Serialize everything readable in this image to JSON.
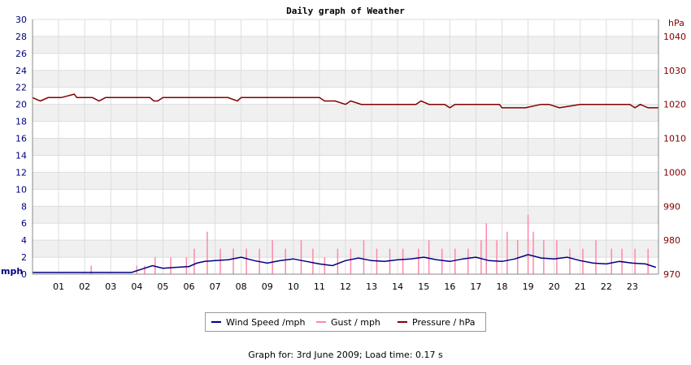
{
  "chart_data": {
    "type": "line",
    "title": "Daily graph of Weather",
    "y_left_label": "mph",
    "y_right_label": "hPa",
    "y_left_range": [
      0,
      30
    ],
    "y_left_ticks": [
      0,
      2,
      4,
      6,
      8,
      10,
      12,
      14,
      16,
      18,
      20,
      22,
      24,
      26,
      28,
      30
    ],
    "y_right_range": [
      970,
      1045
    ],
    "y_right_ticks": [
      970,
      980,
      990,
      1000,
      1010,
      1020,
      1030,
      1040
    ],
    "x_range": [
      0,
      24
    ],
    "x_ticks": [
      "01",
      "02",
      "03",
      "04",
      "05",
      "06",
      "07",
      "08",
      "09",
      "10",
      "11",
      "12",
      "13",
      "14",
      "15",
      "16",
      "17",
      "18",
      "19",
      "20",
      "21",
      "22",
      "23"
    ],
    "grid": true,
    "legend_position": "bottom-center",
    "series": [
      {
        "name": "Wind Speed /mph",
        "axis": "left",
        "color": "#000080",
        "x": [
          0,
          1,
          2,
          3,
          3.8,
          4.2,
          4.6,
          5,
          5.5,
          6,
          6.3,
          6.6,
          7,
          7.5,
          8,
          8.5,
          9,
          9.5,
          10,
          10.5,
          11,
          11.5,
          12,
          12.5,
          13,
          13.5,
          14,
          14.5,
          15,
          15.5,
          16,
          16.5,
          17,
          17.5,
          18,
          18.5,
          19,
          19.5,
          20,
          20.5,
          21,
          21.5,
          22,
          22.5,
          23,
          23.5,
          23.9
        ],
        "values": [
          0.2,
          0.2,
          0.2,
          0.2,
          0.2,
          0.6,
          1.0,
          0.7,
          0.8,
          0.9,
          1.3,
          1.5,
          1.6,
          1.7,
          2.0,
          1.6,
          1.3,
          1.6,
          1.8,
          1.5,
          1.2,
          1.0,
          1.6,
          1.9,
          1.6,
          1.5,
          1.7,
          1.8,
          2.0,
          1.7,
          1.5,
          1.8,
          2.0,
          1.6,
          1.5,
          1.8,
          2.3,
          1.9,
          1.8,
          2.0,
          1.6,
          1.3,
          1.2,
          1.5,
          1.3,
          1.2,
          0.8
        ]
      },
      {
        "name": "Gust / mph",
        "axis": "left",
        "color": "#ff88aa",
        "x": [
          2.25,
          4.0,
          4.3,
          4.7,
          5.3,
          5.9,
          6.2,
          6.7,
          7.2,
          7.7,
          8.2,
          8.7,
          9.2,
          9.7,
          10.3,
          10.75,
          11.2,
          11.7,
          12.2,
          12.7,
          13.2,
          13.7,
          14.2,
          14.8,
          15.2,
          15.7,
          16.2,
          16.7,
          17.2,
          17.4,
          17.8,
          18.2,
          18.6,
          19.0,
          19.2,
          19.6,
          20.1,
          20.6,
          21.1,
          21.6,
          22.2,
          22.6,
          23.1,
          23.6
        ],
        "values": [
          1,
          1,
          1,
          2,
          2,
          2,
          3,
          5,
          3,
          3,
          3,
          3,
          4,
          3,
          4,
          3,
          2,
          3,
          3,
          4,
          3,
          3,
          3,
          3,
          4,
          3,
          3,
          3,
          4,
          6,
          4,
          5,
          4,
          7,
          5,
          4,
          4,
          3,
          3,
          4,
          3,
          3,
          3,
          3
        ]
      },
      {
        "name": "Pressure / hPa",
        "axis": "right",
        "color": "#800000",
        "x": [
          0,
          0.3,
          0.6,
          1.1,
          1.6,
          1.7,
          2.3,
          2.55,
          2.8,
          3.0,
          3.5,
          4.5,
          4.65,
          4.8,
          5.0,
          6.0,
          7.5,
          7.85,
          8.0,
          9.0,
          10.0,
          11.0,
          11.2,
          11.6,
          12.0,
          12.2,
          12.6,
          13.0,
          14.0,
          14.7,
          14.9,
          15.2,
          15.8,
          16.0,
          16.2,
          17.0,
          17.9,
          18.0,
          18.6,
          18.9,
          19.5,
          19.8,
          20.2,
          21.0,
          22.0,
          22.9,
          23.1,
          23.3,
          23.6,
          24.0
        ],
        "values": [
          1022,
          1021,
          1022,
          1022,
          1023,
          1022,
          1022,
          1021,
          1022,
          1022,
          1022,
          1022,
          1021,
          1021,
          1022,
          1022,
          1022,
          1021,
          1022,
          1022,
          1022,
          1022,
          1021,
          1021,
          1020,
          1021,
          1020,
          1020,
          1020,
          1020,
          1021,
          1020,
          1020,
          1019,
          1020,
          1020,
          1020,
          1019,
          1019,
          1019,
          1020,
          1020,
          1019,
          1020,
          1020,
          1020,
          1019,
          1020,
          1019,
          1019
        ]
      }
    ]
  },
  "footer": {
    "text": "Graph for: 3rd June 2009; Load time: 0.17 s"
  }
}
